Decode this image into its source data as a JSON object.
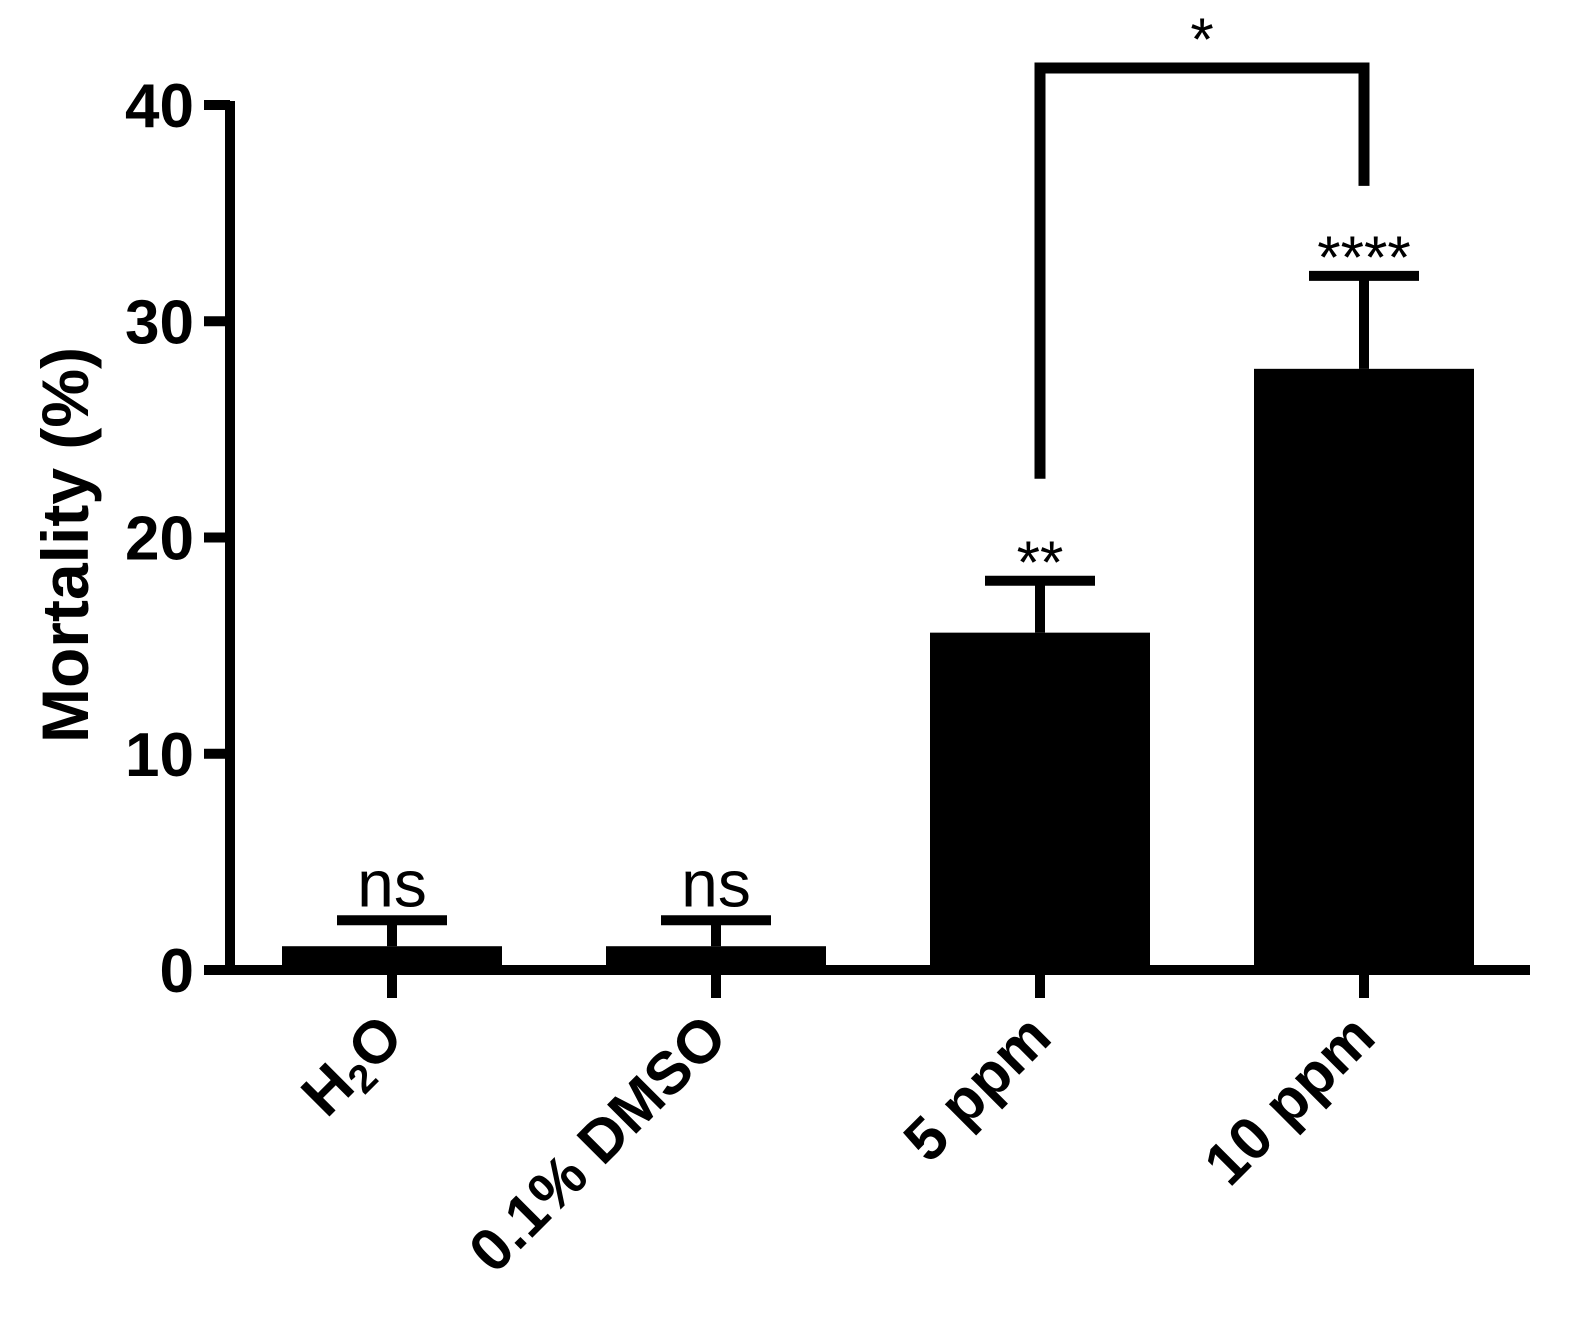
{
  "chart_data": {
    "type": "bar",
    "categories": [
      "H2O",
      "0.1% DMSO",
      "5 ppm",
      "10 ppm"
    ],
    "category_display": [
      {
        "main": "H",
        "sub": "2",
        "tail": "O"
      },
      {
        "main": "0.1% DMSO",
        "sub": "",
        "tail": ""
      },
      {
        "main": "5 ppm",
        "sub": "",
        "tail": ""
      },
      {
        "main": "10 ppm",
        "sub": "",
        "tail": ""
      }
    ],
    "values": [
      1.1,
      1.1,
      15.6,
      27.8
    ],
    "error_upper": [
      2.3,
      2.3,
      18.0,
      32.1
    ],
    "significance": [
      "ns",
      "ns",
      "**",
      "****"
    ],
    "comparison": {
      "from": "5 ppm",
      "to": "10 ppm",
      "label": "*"
    },
    "xlabel": "",
    "ylabel": "Mortality (%)",
    "ylim": [
      0,
      40
    ],
    "yticks": [
      0,
      10,
      20,
      30,
      40
    ],
    "grid": false,
    "bar_color": "#000000"
  }
}
